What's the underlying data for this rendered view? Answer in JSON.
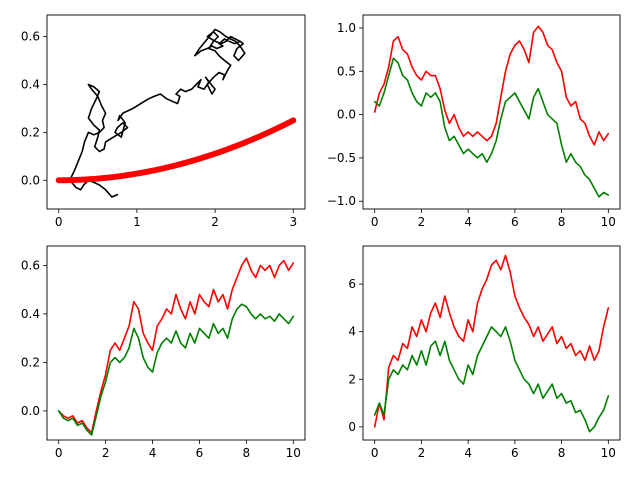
{
  "chart_data": [
    {
      "type": "line",
      "xlim": [
        -0.15,
        3.15
      ],
      "ylim": [
        -0.12,
        0.69
      ],
      "xticks": [
        0,
        1,
        2,
        3
      ],
      "xtick_labels": [
        "0",
        "1",
        "2",
        "3"
      ],
      "yticks": [
        0.0,
        0.2,
        0.4,
        0.6
      ],
      "ytick_labels": [
        "0.0",
        "0.2",
        "0.4",
        "0.6"
      ],
      "grid": false,
      "series": [
        {
          "style": "line",
          "color": "#000000",
          "x": [
            0.75,
            0.68,
            0.6,
            0.52,
            0.46,
            0.38,
            0.32,
            0.28,
            0.22,
            0.17,
            0.14,
            0.2,
            0.25,
            0.3,
            0.33,
            0.38,
            0.45,
            0.52,
            0.58,
            0.56,
            0.6,
            0.55,
            0.5,
            0.42,
            0.38,
            0.45,
            0.52,
            0.48,
            0.42,
            0.38,
            0.45,
            0.52,
            0.5,
            0.46,
            0.52,
            0.58,
            0.6,
            0.7,
            0.8,
            0.88,
            0.82,
            0.75,
            0.72,
            0.8,
            0.85,
            0.78,
            0.76,
            0.82,
            0.95,
            1.05,
            1.15,
            1.22,
            1.3,
            1.38,
            1.45,
            1.52,
            1.55,
            1.5,
            1.56,
            1.62,
            1.7,
            1.76,
            1.82,
            1.78,
            1.86,
            1.92,
            1.88,
            1.95,
            2.0,
            1.96,
            1.9,
            1.98,
            2.05,
            2.12,
            2.1,
            2.16,
            2.2,
            2.12,
            2.05,
            2.0,
            1.92,
            1.98,
            2.04,
            1.98,
            1.9,
            2.0,
            2.08,
            2.14,
            2.2,
            2.26,
            2.32,
            2.36,
            2.28,
            2.24,
            2.3,
            2.38,
            2.32,
            2.26,
            2.2,
            2.14,
            2.06,
            2.0,
            1.95,
            1.9,
            1.85,
            1.8,
            1.76,
            1.74,
            1.82,
            1.9,
            1.96,
            2.02,
            2.1,
            2.05,
            2.12,
            2.18,
            2.25,
            2.32
          ],
          "y": [
            -0.06,
            -0.07,
            -0.04,
            -0.02,
            -0.01,
            0.0,
            -0.02,
            -0.04,
            -0.03,
            -0.01,
            0.0,
            0.04,
            0.08,
            0.12,
            0.16,
            0.2,
            0.19,
            0.2,
            0.22,
            0.25,
            0.28,
            0.31,
            0.35,
            0.38,
            0.4,
            0.39,
            0.37,
            0.34,
            0.3,
            0.26,
            0.23,
            0.21,
            0.18,
            0.14,
            0.12,
            0.13,
            0.16,
            0.18,
            0.2,
            0.22,
            0.24,
            0.22,
            0.2,
            0.18,
            0.24,
            0.27,
            0.25,
            0.28,
            0.3,
            0.32,
            0.34,
            0.35,
            0.36,
            0.34,
            0.33,
            0.32,
            0.35,
            0.36,
            0.38,
            0.37,
            0.38,
            0.4,
            0.42,
            0.39,
            0.38,
            0.41,
            0.43,
            0.4,
            0.38,
            0.36,
            0.4,
            0.43,
            0.45,
            0.44,
            0.42,
            0.46,
            0.48,
            0.5,
            0.52,
            0.54,
            0.55,
            0.58,
            0.6,
            0.62,
            0.6,
            0.58,
            0.57,
            0.58,
            0.6,
            0.59,
            0.58,
            0.57,
            0.55,
            0.52,
            0.5,
            0.53,
            0.56,
            0.58,
            0.59,
            0.6,
            0.62,
            0.63,
            0.61,
            0.59,
            0.57,
            0.55,
            0.53,
            0.52,
            0.54,
            0.55,
            0.56,
            0.55,
            0.56,
            0.57,
            0.59,
            0.58,
            0.57,
            0.58
          ]
        },
        {
          "style": "scatter",
          "color": "#ff0000",
          "marker": "circle",
          "x_range": [
            0,
            3
          ],
          "n_points": 150,
          "formula": "y = x^2 / 36"
        }
      ]
    },
    {
      "type": "line",
      "xlim": [
        -0.5,
        10.5
      ],
      "ylim": [
        -1.09,
        1.15
      ],
      "xticks": [
        0,
        2,
        4,
        6,
        8,
        10
      ],
      "xtick_labels": [
        "0",
        "2",
        "4",
        "6",
        "8",
        "10"
      ],
      "yticks": [
        -1.0,
        -0.5,
        0.0,
        0.5,
        1.0
      ],
      "ytick_labels": [
        "−1.0",
        "−0.5",
        "0.0",
        "0.5",
        "1.0"
      ],
      "grid": false,
      "series": [
        {
          "color": "#ff0000",
          "x": [
            0.0,
            0.2,
            0.4,
            0.6,
            0.8,
            1.0,
            1.2,
            1.4,
            1.6,
            1.8,
            2.0,
            2.2,
            2.4,
            2.6,
            2.8,
            3.0,
            3.2,
            3.4,
            3.6,
            3.8,
            4.0,
            4.2,
            4.4,
            4.6,
            4.8,
            5.0,
            5.2,
            5.4,
            5.6,
            5.8,
            6.0,
            6.2,
            6.4,
            6.6,
            6.8,
            7.0,
            7.2,
            7.4,
            7.6,
            7.8,
            8.0,
            8.2,
            8.4,
            8.6,
            8.8,
            9.0,
            9.2,
            9.4,
            9.6,
            9.8,
            10.0
          ],
          "y": [
            0.03,
            0.25,
            0.35,
            0.55,
            0.85,
            0.9,
            0.75,
            0.7,
            0.55,
            0.45,
            0.4,
            0.5,
            0.45,
            0.45,
            0.3,
            0.05,
            -0.1,
            0.0,
            -0.15,
            -0.25,
            -0.2,
            -0.25,
            -0.2,
            -0.25,
            -0.3,
            -0.25,
            -0.1,
            0.2,
            0.5,
            0.7,
            0.8,
            0.85,
            0.75,
            0.6,
            0.95,
            1.02,
            0.95,
            0.8,
            0.75,
            0.6,
            0.5,
            0.2,
            0.1,
            0.15,
            -0.05,
            -0.1,
            -0.25,
            -0.35,
            -0.2,
            -0.3,
            -0.22
          ]
        },
        {
          "color": "#008000",
          "x": [
            0.0,
            0.2,
            0.4,
            0.6,
            0.8,
            1.0,
            1.2,
            1.4,
            1.6,
            1.8,
            2.0,
            2.2,
            2.4,
            2.6,
            2.8,
            3.0,
            3.2,
            3.4,
            3.6,
            3.8,
            4.0,
            4.2,
            4.4,
            4.6,
            4.8,
            5.0,
            5.2,
            5.4,
            5.6,
            5.8,
            6.0,
            6.2,
            6.4,
            6.6,
            6.8,
            7.0,
            7.2,
            7.4,
            7.6,
            7.8,
            8.0,
            8.2,
            8.4,
            8.6,
            8.8,
            9.0,
            9.2,
            9.4,
            9.6,
            9.8,
            10.0
          ],
          "y": [
            0.15,
            0.1,
            0.25,
            0.45,
            0.65,
            0.6,
            0.45,
            0.4,
            0.25,
            0.15,
            0.1,
            0.25,
            0.2,
            0.25,
            0.15,
            -0.15,
            -0.3,
            -0.25,
            -0.35,
            -0.45,
            -0.4,
            -0.45,
            -0.5,
            -0.45,
            -0.55,
            -0.45,
            -0.3,
            -0.05,
            0.15,
            0.2,
            0.25,
            0.15,
            0.05,
            -0.05,
            0.2,
            0.3,
            0.15,
            0.0,
            -0.05,
            -0.1,
            -0.35,
            -0.55,
            -0.45,
            -0.55,
            -0.6,
            -0.7,
            -0.75,
            -0.85,
            -0.95,
            -0.9,
            -0.93
          ]
        }
      ]
    },
    {
      "type": "line",
      "xlim": [
        -0.5,
        10.5
      ],
      "ylim": [
        -0.12,
        0.68
      ],
      "xticks": [
        0,
        2,
        4,
        6,
        8,
        10
      ],
      "xtick_labels": [
        "0",
        "2",
        "4",
        "6",
        "8",
        "10"
      ],
      "yticks": [
        0.0,
        0.2,
        0.4,
        0.6
      ],
      "ytick_labels": [
        "0.0",
        "0.2",
        "0.4",
        "0.6"
      ],
      "grid": false,
      "series": [
        {
          "color": "#ff0000",
          "x": [
            0.0,
            0.2,
            0.4,
            0.6,
            0.8,
            1.0,
            1.2,
            1.4,
            1.6,
            1.8,
            2.0,
            2.2,
            2.4,
            2.6,
            2.8,
            3.0,
            3.2,
            3.4,
            3.6,
            3.8,
            4.0,
            4.2,
            4.4,
            4.6,
            4.8,
            5.0,
            5.2,
            5.4,
            5.6,
            5.8,
            6.0,
            6.2,
            6.4,
            6.6,
            6.8,
            7.0,
            7.2,
            7.4,
            7.6,
            7.8,
            8.0,
            8.2,
            8.4,
            8.6,
            8.8,
            9.0,
            9.2,
            9.4,
            9.6,
            9.8,
            10.0
          ],
          "y": [
            0.0,
            -0.02,
            -0.03,
            -0.02,
            -0.05,
            -0.04,
            -0.07,
            -0.09,
            0.0,
            0.08,
            0.15,
            0.25,
            0.28,
            0.25,
            0.3,
            0.35,
            0.45,
            0.42,
            0.32,
            0.28,
            0.25,
            0.35,
            0.38,
            0.42,
            0.4,
            0.48,
            0.42,
            0.38,
            0.45,
            0.4,
            0.48,
            0.45,
            0.43,
            0.5,
            0.45,
            0.48,
            0.42,
            0.5,
            0.55,
            0.6,
            0.63,
            0.58,
            0.55,
            0.6,
            0.58,
            0.6,
            0.55,
            0.6,
            0.62,
            0.58,
            0.61
          ]
        },
        {
          "color": "#008000",
          "x": [
            0.0,
            0.2,
            0.4,
            0.6,
            0.8,
            1.0,
            1.2,
            1.4,
            1.6,
            1.8,
            2.0,
            2.2,
            2.4,
            2.6,
            2.8,
            3.0,
            3.2,
            3.4,
            3.6,
            3.8,
            4.0,
            4.2,
            4.4,
            4.6,
            4.8,
            5.0,
            5.2,
            5.4,
            5.6,
            5.8,
            6.0,
            6.2,
            6.4,
            6.6,
            6.8,
            7.0,
            7.2,
            7.4,
            7.6,
            7.8,
            8.0,
            8.2,
            8.4,
            8.6,
            8.8,
            9.0,
            9.2,
            9.4,
            9.6,
            9.8,
            10.0
          ],
          "y": [
            0.0,
            -0.03,
            -0.04,
            -0.03,
            -0.06,
            -0.05,
            -0.08,
            -0.1,
            -0.02,
            0.06,
            0.12,
            0.2,
            0.22,
            0.2,
            0.22,
            0.26,
            0.34,
            0.3,
            0.22,
            0.18,
            0.16,
            0.24,
            0.28,
            0.3,
            0.28,
            0.33,
            0.28,
            0.26,
            0.32,
            0.28,
            0.34,
            0.32,
            0.3,
            0.36,
            0.32,
            0.34,
            0.3,
            0.38,
            0.42,
            0.44,
            0.43,
            0.4,
            0.38,
            0.4,
            0.38,
            0.39,
            0.37,
            0.4,
            0.38,
            0.36,
            0.39
          ]
        }
      ]
    },
    {
      "type": "line",
      "xlim": [
        -0.5,
        10.5
      ],
      "ylim": [
        -0.55,
        7.6
      ],
      "xticks": [
        0,
        2,
        4,
        6,
        8,
        10
      ],
      "xtick_labels": [
        "0",
        "2",
        "4",
        "6",
        "8",
        "10"
      ],
      "yticks": [
        0,
        2,
        4,
        6
      ],
      "ytick_labels": [
        "0",
        "2",
        "4",
        "6"
      ],
      "grid": false,
      "series": [
        {
          "color": "#ff0000",
          "x": [
            0.0,
            0.2,
            0.4,
            0.6,
            0.8,
            1.0,
            1.2,
            1.4,
            1.6,
            1.8,
            2.0,
            2.2,
            2.4,
            2.6,
            2.8,
            3.0,
            3.2,
            3.4,
            3.6,
            3.8,
            4.0,
            4.2,
            4.4,
            4.6,
            4.8,
            5.0,
            5.2,
            5.4,
            5.6,
            5.8,
            6.0,
            6.2,
            6.4,
            6.6,
            6.8,
            7.0,
            7.2,
            7.4,
            7.6,
            7.8,
            8.0,
            8.2,
            8.4,
            8.6,
            8.8,
            9.0,
            9.2,
            9.4,
            9.6,
            9.8,
            10.0
          ],
          "y": [
            0.0,
            1.0,
            0.3,
            2.5,
            3.0,
            2.8,
            3.5,
            3.3,
            4.2,
            3.8,
            4.5,
            4.0,
            4.8,
            5.2,
            4.6,
            5.5,
            4.8,
            4.2,
            3.8,
            3.6,
            4.5,
            4.0,
            5.2,
            5.8,
            6.2,
            6.8,
            7.0,
            6.6,
            7.2,
            6.5,
            5.5,
            5.0,
            4.6,
            4.3,
            3.8,
            4.2,
            3.6,
            3.9,
            4.2,
            3.5,
            3.8,
            3.3,
            3.5,
            3.0,
            3.2,
            2.8,
            3.4,
            2.8,
            3.2,
            4.2,
            5.0
          ]
        },
        {
          "color": "#008000",
          "x": [
            0.0,
            0.2,
            0.4,
            0.6,
            0.8,
            1.0,
            1.2,
            1.4,
            1.6,
            1.8,
            2.0,
            2.2,
            2.4,
            2.6,
            2.8,
            3.0,
            3.2,
            3.4,
            3.6,
            3.8,
            4.0,
            4.2,
            4.4,
            4.6,
            4.8,
            5.0,
            5.2,
            5.4,
            5.6,
            5.8,
            6.0,
            6.2,
            6.4,
            6.6,
            6.8,
            7.0,
            7.2,
            7.4,
            7.6,
            7.8,
            8.0,
            8.2,
            8.4,
            8.6,
            8.8,
            9.0,
            9.2,
            9.4,
            9.6,
            9.8,
            10.0
          ],
          "y": [
            0.5,
            1.0,
            0.5,
            2.0,
            2.4,
            2.2,
            2.6,
            2.4,
            3.0,
            2.6,
            3.2,
            2.6,
            3.4,
            3.6,
            3.0,
            3.6,
            2.8,
            2.4,
            2.0,
            1.8,
            2.6,
            2.2,
            3.0,
            3.4,
            3.8,
            4.2,
            4.0,
            3.8,
            4.2,
            3.6,
            2.8,
            2.4,
            2.0,
            1.8,
            1.4,
            1.8,
            1.2,
            1.5,
            1.8,
            1.2,
            1.4,
            1.0,
            1.1,
            0.6,
            0.7,
            0.3,
            -0.2,
            0.0,
            0.4,
            0.7,
            1.3
          ]
        }
      ]
    }
  ]
}
